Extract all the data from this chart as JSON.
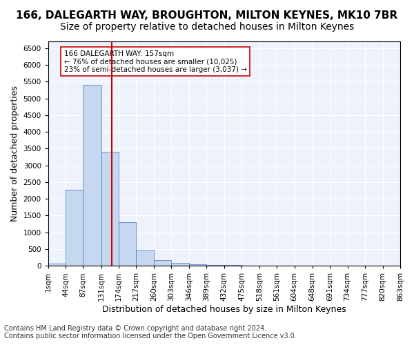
{
  "title": "166, DALEGARTH WAY, BROUGHTON, MILTON KEYNES, MK10 7BR",
  "subtitle": "Size of property relative to detached houses in Milton Keynes",
  "xlabel": "Distribution of detached houses by size in Milton Keynes",
  "ylabel": "Number of detached properties",
  "footer_line1": "Contains HM Land Registry data © Crown copyright and database right 2024.",
  "footer_line2": "Contains public sector information licensed under the Open Government Licence v3.0.",
  "annotation_line1": "166 DALEGARTH WAY: 157sqm",
  "annotation_line2": "← 76% of detached houses are smaller (10,025)",
  "annotation_line3": "23% of semi-detached houses are larger (3,037) →",
  "bar_color": "#c5d8f0",
  "bar_edge_color": "#4472c4",
  "reference_line_color": "#cc0000",
  "reference_line_x": 157,
  "bin_edges": [
    1,
    44,
    87,
    131,
    174,
    217,
    260,
    303,
    346,
    389,
    432,
    475,
    518,
    561,
    604,
    648,
    691,
    734,
    777,
    820,
    863
  ],
  "bin_labels": [
    "1sqm",
    "44sqm",
    "87sqm",
    "131sqm",
    "174sqm",
    "217sqm",
    "260sqm",
    "303sqm",
    "346sqm",
    "389sqm",
    "432sqm",
    "475sqm",
    "518sqm",
    "561sqm",
    "604sqm",
    "648sqm",
    "691sqm",
    "734sqm",
    "777sqm",
    "820sqm",
    "863sqm"
  ],
  "bar_heights": [
    75,
    2275,
    5400,
    3400,
    1300,
    480,
    165,
    85,
    55,
    30,
    20,
    15,
    10,
    8,
    5,
    3,
    2,
    2,
    1,
    1
  ],
  "ylim": [
    0,
    6700
  ],
  "yticks": [
    0,
    500,
    1000,
    1500,
    2000,
    2500,
    3000,
    3500,
    4000,
    4500,
    5000,
    5500,
    6000,
    6500
  ],
  "background_color": "#eef2fb",
  "grid_color": "#ffffff",
  "title_fontsize": 11,
  "subtitle_fontsize": 10,
  "axis_label_fontsize": 9,
  "tick_fontsize": 7.5,
  "footer_fontsize": 7
}
